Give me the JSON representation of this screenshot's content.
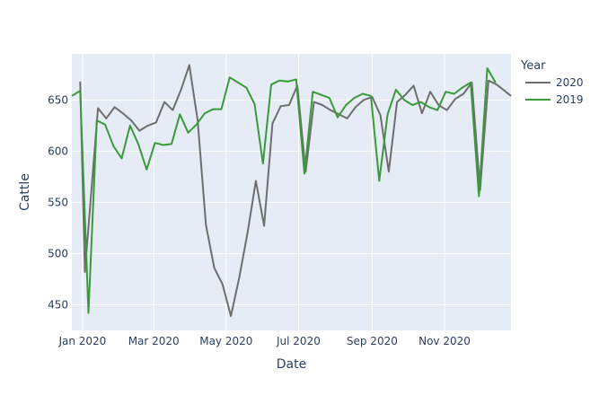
{
  "chart_data": {
    "type": "line",
    "xlabel": "Date",
    "ylabel": "Cattle",
    "legend_title": "Year",
    "legend_position": "right",
    "grid": true,
    "plot_background": "#e5ecf6",
    "xlim": [
      "2019-12-23",
      "2020-12-27"
    ],
    "ylim": [
      425,
      695
    ],
    "x_ticks": [
      {
        "date": "2020-01-01",
        "label": "Jan 2020"
      },
      {
        "date": "2020-03-01",
        "label": "Mar 2020"
      },
      {
        "date": "2020-05-01",
        "label": "May 2020"
      },
      {
        "date": "2020-07-01",
        "label": "Jul 2020"
      },
      {
        "date": "2020-09-01",
        "label": "Sep 2020"
      },
      {
        "date": "2020-11-01",
        "label": "Nov 2020"
      }
    ],
    "y_ticks": [
      450,
      500,
      550,
      600,
      650
    ],
    "series": [
      {
        "name": "2020",
        "color": "#6e6e6e",
        "points": [
          [
            "2019-12-30",
            668
          ],
          [
            "2020-01-03",
            482
          ],
          [
            "2020-01-07",
            540
          ],
          [
            "2020-01-14",
            642
          ],
          [
            "2020-01-21",
            632
          ],
          [
            "2020-01-28",
            643
          ],
          [
            "2020-02-04",
            637
          ],
          [
            "2020-02-11",
            630
          ],
          [
            "2020-02-18",
            620
          ],
          [
            "2020-02-25",
            625
          ],
          [
            "2020-03-03",
            628
          ],
          [
            "2020-03-10",
            648
          ],
          [
            "2020-03-17",
            640
          ],
          [
            "2020-03-24",
            660
          ],
          [
            "2020-03-31",
            684
          ],
          [
            "2020-04-07",
            630
          ],
          [
            "2020-04-14",
            528
          ],
          [
            "2020-04-21",
            486
          ],
          [
            "2020-04-28",
            470
          ],
          [
            "2020-05-05",
            439
          ],
          [
            "2020-05-12",
            476
          ],
          [
            "2020-05-19",
            520
          ],
          [
            "2020-05-26",
            571
          ],
          [
            "2020-06-02",
            527
          ],
          [
            "2020-06-09",
            627
          ],
          [
            "2020-06-16",
            644
          ],
          [
            "2020-06-23",
            645
          ],
          [
            "2020-06-30",
            664
          ],
          [
            "2020-07-07",
            580
          ],
          [
            "2020-07-14",
            648
          ],
          [
            "2020-07-21",
            645
          ],
          [
            "2020-07-28",
            640
          ],
          [
            "2020-08-04",
            636
          ],
          [
            "2020-08-11",
            632
          ],
          [
            "2020-08-18",
            643
          ],
          [
            "2020-08-25",
            650
          ],
          [
            "2020-09-01",
            653
          ],
          [
            "2020-09-08",
            635
          ],
          [
            "2020-09-15",
            580
          ],
          [
            "2020-09-22",
            648
          ],
          [
            "2020-09-29",
            655
          ],
          [
            "2020-10-06",
            664
          ],
          [
            "2020-10-13",
            637
          ],
          [
            "2020-10-20",
            658
          ],
          [
            "2020-10-27",
            645
          ],
          [
            "2020-11-03",
            640
          ],
          [
            "2020-11-10",
            651
          ],
          [
            "2020-11-17",
            656
          ],
          [
            "2020-11-24",
            667
          ],
          [
            "2020-12-01",
            562
          ],
          [
            "2020-12-08",
            669
          ],
          [
            "2020-12-15",
            665
          ],
          [
            "2020-12-27",
            654
          ]
        ]
      },
      {
        "name": "2019",
        "color": "#3a9a3a",
        "points": [
          [
            "2019-12-23",
            654
          ],
          [
            "2019-12-30",
            659
          ],
          [
            "2020-01-06",
            442
          ],
          [
            "2020-01-13",
            630
          ],
          [
            "2020-01-20",
            626
          ],
          [
            "2020-01-27",
            605
          ],
          [
            "2020-02-03",
            593
          ],
          [
            "2020-02-10",
            625
          ],
          [
            "2020-02-17",
            607
          ],
          [
            "2020-02-24",
            582
          ],
          [
            "2020-03-02",
            608
          ],
          [
            "2020-03-09",
            606
          ],
          [
            "2020-03-16",
            607
          ],
          [
            "2020-03-23",
            636
          ],
          [
            "2020-03-30",
            618
          ],
          [
            "2020-04-06",
            626
          ],
          [
            "2020-04-13",
            637
          ],
          [
            "2020-04-20",
            641
          ],
          [
            "2020-04-27",
            641
          ],
          [
            "2020-05-04",
            672
          ],
          [
            "2020-05-11",
            667
          ],
          [
            "2020-05-18",
            662
          ],
          [
            "2020-05-25",
            646
          ],
          [
            "2020-06-01",
            588
          ],
          [
            "2020-06-08",
            665
          ],
          [
            "2020-06-15",
            669
          ],
          [
            "2020-06-22",
            668
          ],
          [
            "2020-06-29",
            670
          ],
          [
            "2020-07-06",
            578
          ],
          [
            "2020-07-13",
            658
          ],
          [
            "2020-07-20",
            655
          ],
          [
            "2020-07-27",
            652
          ],
          [
            "2020-08-03",
            633
          ],
          [
            "2020-08-10",
            645
          ],
          [
            "2020-08-17",
            652
          ],
          [
            "2020-08-24",
            656
          ],
          [
            "2020-08-31",
            654
          ],
          [
            "2020-09-07",
            571
          ],
          [
            "2020-09-14",
            636
          ],
          [
            "2020-09-21",
            660
          ],
          [
            "2020-09-28",
            650
          ],
          [
            "2020-10-05",
            645
          ],
          [
            "2020-10-12",
            648
          ],
          [
            "2020-10-19",
            643
          ],
          [
            "2020-10-26",
            640
          ],
          [
            "2020-11-02",
            658
          ],
          [
            "2020-11-09",
            656
          ],
          [
            "2020-11-16",
            662
          ],
          [
            "2020-11-23",
            667
          ],
          [
            "2020-11-30",
            556
          ],
          [
            "2020-12-07",
            681
          ],
          [
            "2020-12-14",
            667
          ]
        ]
      }
    ]
  }
}
